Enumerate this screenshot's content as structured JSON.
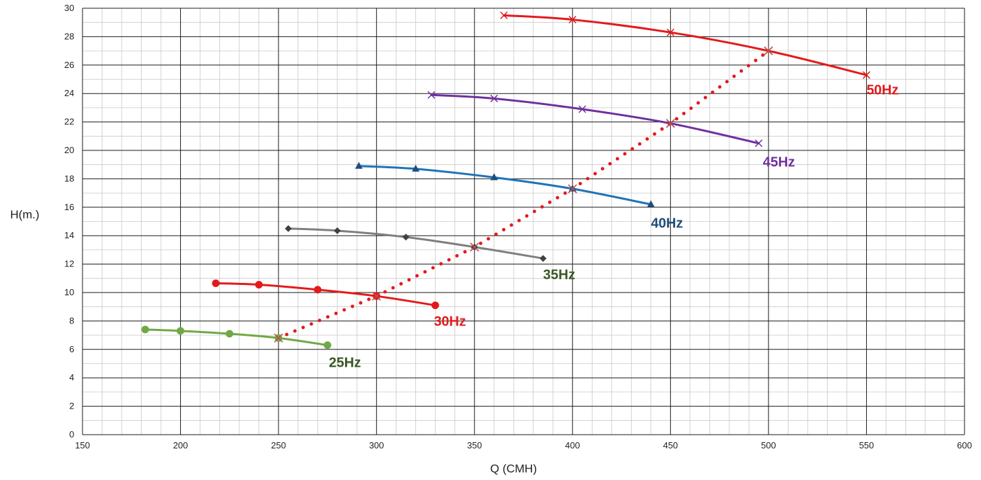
{
  "chart_data": {
    "type": "line",
    "xlabel": "Q (CMH)",
    "ylabel": "H(m.)",
    "xlim": [
      150,
      600
    ],
    "ylim": [
      0,
      30
    ],
    "x_ticks": [
      150,
      200,
      250,
      300,
      350,
      400,
      450,
      500,
      550,
      600
    ],
    "y_ticks": [
      0,
      2,
      4,
      6,
      8,
      10,
      12,
      14,
      16,
      18,
      20,
      22,
      24,
      26,
      28,
      30
    ],
    "grid": true,
    "legend": "none (series labeled at line ends)",
    "series": [
      {
        "name": "50Hz",
        "color": "#e31a1c",
        "marker": "x",
        "x": [
          365,
          400,
          450,
          500,
          550
        ],
        "y": [
          29.5,
          29.2,
          28.3,
          27.0,
          25.3
        ]
      },
      {
        "name": "45Hz",
        "color": "#7030a0",
        "marker": "x",
        "x": [
          328,
          360,
          405,
          450,
          495
        ],
        "y": [
          23.9,
          23.65,
          22.9,
          21.9,
          20.5
        ]
      },
      {
        "name": "40Hz",
        "color": "#1f74b8",
        "marker": "triangle",
        "x": [
          291,
          320,
          360,
          400,
          440
        ],
        "y": [
          18.9,
          18.7,
          18.1,
          17.3,
          16.2
        ]
      },
      {
        "name": "35Hz",
        "color": "#7f7f7f",
        "marker": "diamond",
        "x": [
          255,
          280,
          315,
          350,
          385
        ],
        "y": [
          14.5,
          14.35,
          13.9,
          13.2,
          12.4
        ]
      },
      {
        "name": "30Hz",
        "color": "#e31a1c",
        "marker": "circle",
        "x": [
          218,
          240,
          270,
          300,
          330
        ],
        "y": [
          10.65,
          10.55,
          10.2,
          9.75,
          9.1
        ]
      },
      {
        "name": "25Hz",
        "color": "#70a845",
        "marker": "circle",
        "x": [
          182,
          200,
          225,
          250,
          275
        ],
        "y": [
          7.4,
          7.3,
          7.1,
          6.8,
          6.3
        ]
      }
    ],
    "system_curve": {
      "color": "#e31a1c",
      "style": "dotted",
      "x": [
        250,
        300,
        350,
        400,
        450,
        500
      ],
      "y": [
        6.8,
        9.75,
        13.2,
        17.3,
        21.9,
        27.0
      ]
    },
    "label_colors": {
      "50Hz": "#e31a1c",
      "45Hz": "#7030a0",
      "40Hz": "#1f4e79",
      "35Hz": "#375623",
      "30Hz": "#e31a1c",
      "25Hz": "#375623"
    }
  }
}
